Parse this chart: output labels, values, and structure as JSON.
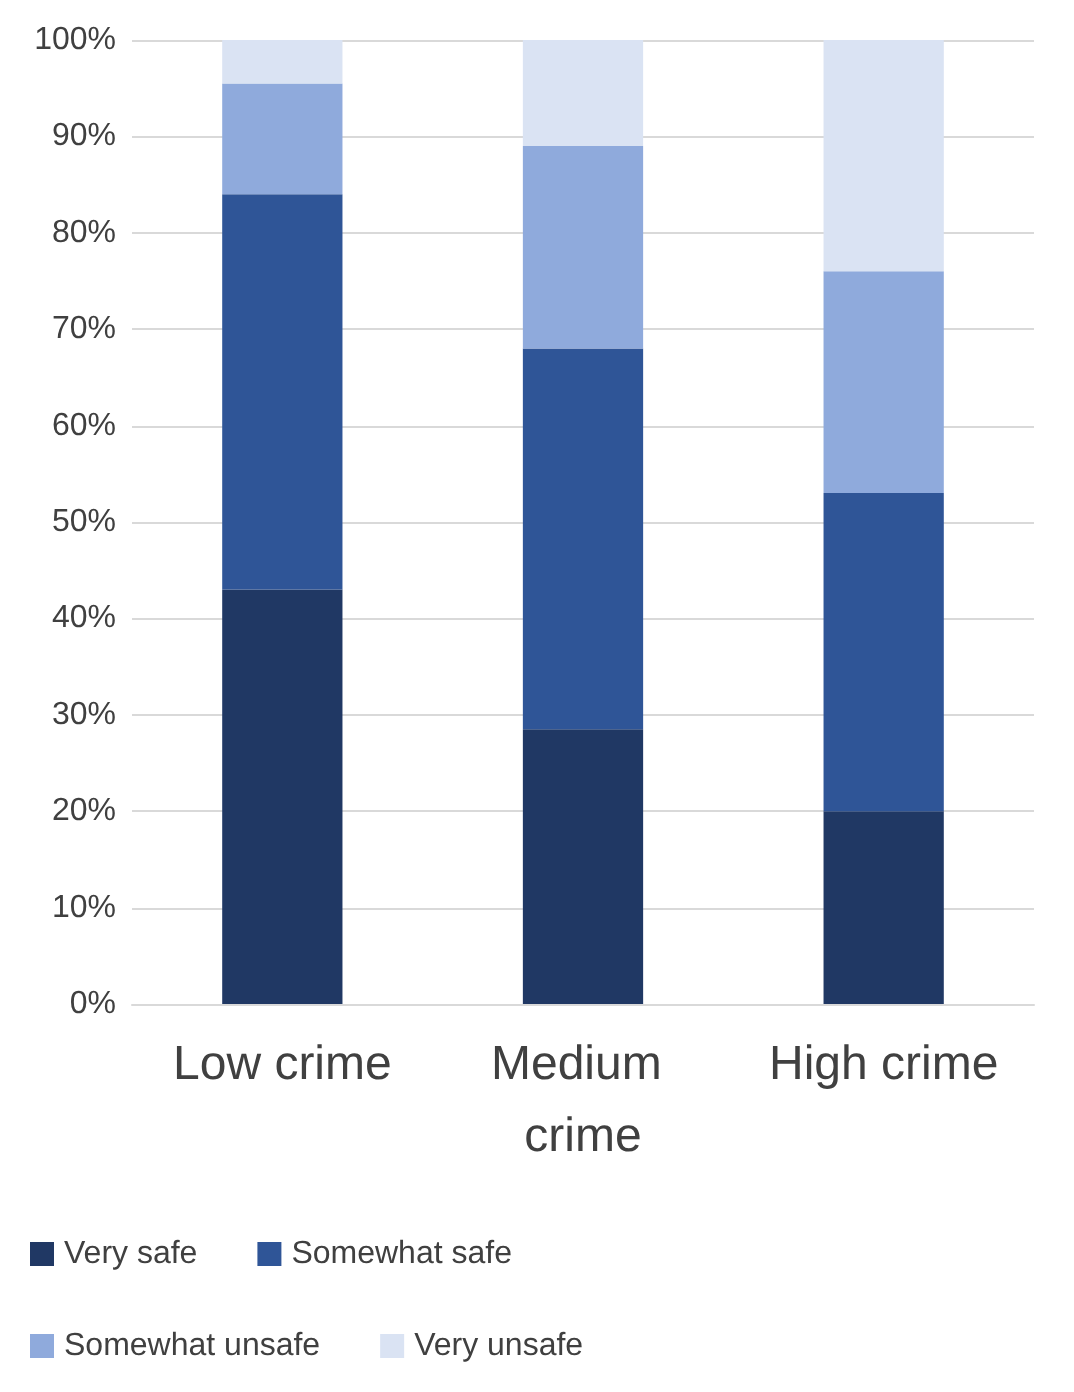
{
  "chart_data": {
    "type": "bar",
    "stacked": true,
    "categories": [
      "Low crime",
      "Medium crime",
      "High crime"
    ],
    "series": [
      {
        "name": "Very safe",
        "color": "#203864",
        "values": [
          43,
          28.5,
          20
        ]
      },
      {
        "name": "Somewhat safe",
        "color": "#2f5597",
        "values": [
          41,
          39.5,
          33
        ]
      },
      {
        "name": "Somewhat unsafe",
        "color": "#8faadc",
        "values": [
          11.5,
          21,
          23
        ]
      },
      {
        "name": "Very unsafe",
        "color": "#dae3f3",
        "values": [
          4.5,
          11,
          24
        ]
      }
    ],
    "ylim": [
      0,
      100
    ],
    "yticks": [
      {
        "value": 0,
        "label": "0%"
      },
      {
        "value": 10,
        "label": "10%"
      },
      {
        "value": 20,
        "label": "20%"
      },
      {
        "value": 30,
        "label": "30%"
      },
      {
        "value": 40,
        "label": "40%"
      },
      {
        "value": 50,
        "label": "50%"
      },
      {
        "value": 60,
        "label": "60%"
      },
      {
        "value": 70,
        "label": "70%"
      },
      {
        "value": 80,
        "label": "80%"
      },
      {
        "value": 90,
        "label": "90%"
      },
      {
        "value": 100,
        "label": "100%"
      }
    ],
    "grid": "y",
    "legend": "bottom"
  }
}
